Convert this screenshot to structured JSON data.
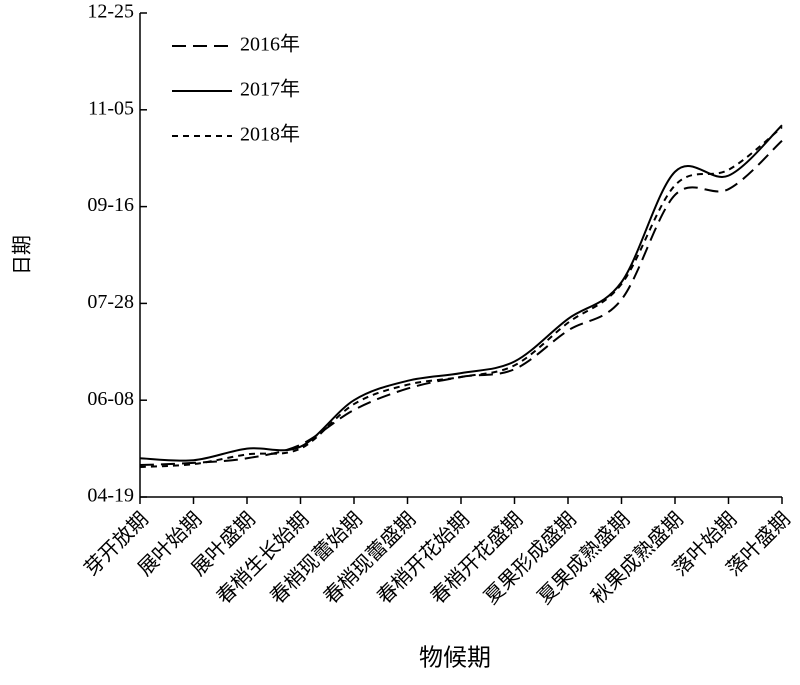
{
  "chart_data": {
    "type": "line",
    "x_label": "物候期",
    "y_label": "日期",
    "categories": [
      "芽开放期",
      "展叶始期",
      "展叶盛期",
      "春梢生长始期",
      "春梢现蕾始期",
      "春梢现蕾盛期",
      "春梢开花始期",
      "春梢开花盛期",
      "夏果形成盛期",
      "夏果成熟盛期",
      "秋果成熟盛期",
      "落叶始期",
      "落叶盛期"
    ],
    "series": [
      {
        "name": "2016年",
        "color": "#000000",
        "dash": "14,7",
        "values": [
          125.5,
          126.6,
          129,
          136,
          154,
          165,
          171,
          175,
          195,
          211,
          265,
          268,
          293
        ]
      },
      {
        "name": "2017年",
        "color": "#000000",
        "dash": "none",
        "values": [
          129,
          128,
          134,
          135,
          159,
          169,
          173,
          179,
          201,
          220,
          277,
          275,
          301
        ]
      },
      {
        "name": "2018年",
        "color": "#000000",
        "dash": "6,5",
        "values": [
          124.5,
          126,
          131,
          134,
          157,
          167,
          171,
          177,
          199,
          219,
          270,
          278,
          300
        ]
      }
    ],
    "ylim": [
      109,
      359
    ],
    "yticks": [
      {
        "value": 109,
        "label": "04-19"
      },
      {
        "value": 159,
        "label": "06-08"
      },
      {
        "value": 209,
        "label": "07-28"
      },
      {
        "value": 259,
        "label": "09-16"
      },
      {
        "value": 309,
        "label": "11-05"
      },
      {
        "value": 359,
        "label": "12-25"
      }
    ],
    "legend": "top-left"
  }
}
